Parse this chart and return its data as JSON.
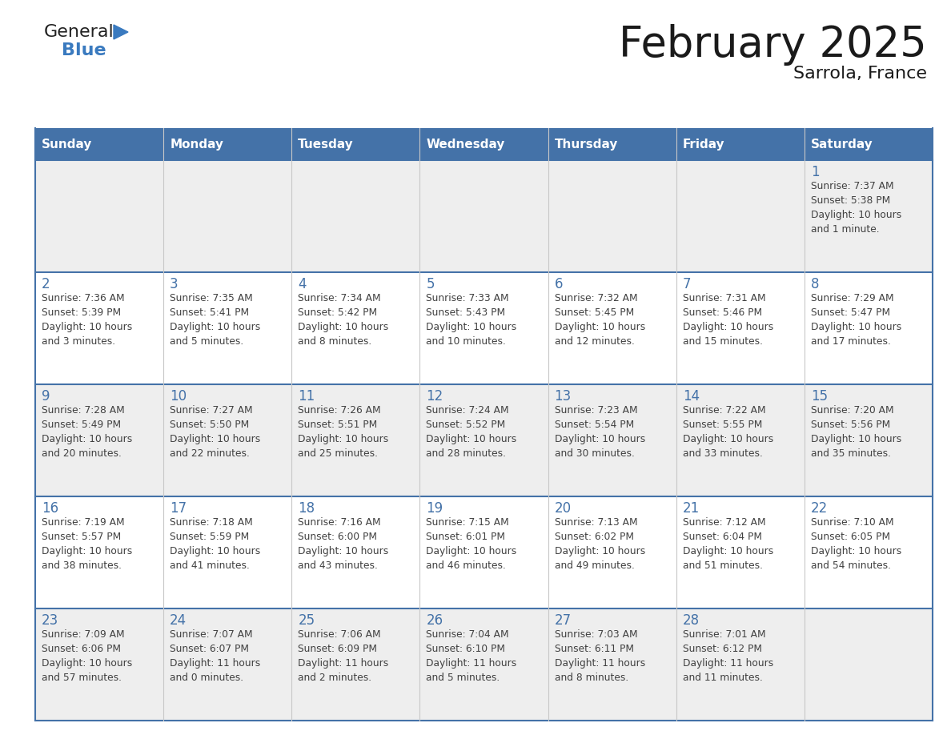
{
  "title": "February 2025",
  "subtitle": "Sarrola, France",
  "days_of_week": [
    "Sunday",
    "Monday",
    "Tuesday",
    "Wednesday",
    "Thursday",
    "Friday",
    "Saturday"
  ],
  "header_bg": "#4472a8",
  "header_text": "#ffffff",
  "row_bg_odd": "#eeeeee",
  "row_bg_even": "#ffffff",
  "grid_line_color": "#4472a8",
  "day_num_color": "#4472a8",
  "text_color": "#404040",
  "calendar_data": [
    [
      null,
      null,
      null,
      null,
      null,
      null,
      {
        "day": 1,
        "sunrise": "7:37 AM",
        "sunset": "5:38 PM",
        "daylight": "10 hours and 1 minute."
      }
    ],
    [
      {
        "day": 2,
        "sunrise": "7:36 AM",
        "sunset": "5:39 PM",
        "daylight": "10 hours and 3 minutes."
      },
      {
        "day": 3,
        "sunrise": "7:35 AM",
        "sunset": "5:41 PM",
        "daylight": "10 hours and 5 minutes."
      },
      {
        "day": 4,
        "sunrise": "7:34 AM",
        "sunset": "5:42 PM",
        "daylight": "10 hours and 8 minutes."
      },
      {
        "day": 5,
        "sunrise": "7:33 AM",
        "sunset": "5:43 PM",
        "daylight": "10 hours and 10 minutes."
      },
      {
        "day": 6,
        "sunrise": "7:32 AM",
        "sunset": "5:45 PM",
        "daylight": "10 hours and 12 minutes."
      },
      {
        "day": 7,
        "sunrise": "7:31 AM",
        "sunset": "5:46 PM",
        "daylight": "10 hours and 15 minutes."
      },
      {
        "day": 8,
        "sunrise": "7:29 AM",
        "sunset": "5:47 PM",
        "daylight": "10 hours and 17 minutes."
      }
    ],
    [
      {
        "day": 9,
        "sunrise": "7:28 AM",
        "sunset": "5:49 PM",
        "daylight": "10 hours and 20 minutes."
      },
      {
        "day": 10,
        "sunrise": "7:27 AM",
        "sunset": "5:50 PM",
        "daylight": "10 hours and 22 minutes."
      },
      {
        "day": 11,
        "sunrise": "7:26 AM",
        "sunset": "5:51 PM",
        "daylight": "10 hours and 25 minutes."
      },
      {
        "day": 12,
        "sunrise": "7:24 AM",
        "sunset": "5:52 PM",
        "daylight": "10 hours and 28 minutes."
      },
      {
        "day": 13,
        "sunrise": "7:23 AM",
        "sunset": "5:54 PM",
        "daylight": "10 hours and 30 minutes."
      },
      {
        "day": 14,
        "sunrise": "7:22 AM",
        "sunset": "5:55 PM",
        "daylight": "10 hours and 33 minutes."
      },
      {
        "day": 15,
        "sunrise": "7:20 AM",
        "sunset": "5:56 PM",
        "daylight": "10 hours and 35 minutes."
      }
    ],
    [
      {
        "day": 16,
        "sunrise": "7:19 AM",
        "sunset": "5:57 PM",
        "daylight": "10 hours and 38 minutes."
      },
      {
        "day": 17,
        "sunrise": "7:18 AM",
        "sunset": "5:59 PM",
        "daylight": "10 hours and 41 minutes."
      },
      {
        "day": 18,
        "sunrise": "7:16 AM",
        "sunset": "6:00 PM",
        "daylight": "10 hours and 43 minutes."
      },
      {
        "day": 19,
        "sunrise": "7:15 AM",
        "sunset": "6:01 PM",
        "daylight": "10 hours and 46 minutes."
      },
      {
        "day": 20,
        "sunrise": "7:13 AM",
        "sunset": "6:02 PM",
        "daylight": "10 hours and 49 minutes."
      },
      {
        "day": 21,
        "sunrise": "7:12 AM",
        "sunset": "6:04 PM",
        "daylight": "10 hours and 51 minutes."
      },
      {
        "day": 22,
        "sunrise": "7:10 AM",
        "sunset": "6:05 PM",
        "daylight": "10 hours and 54 minutes."
      }
    ],
    [
      {
        "day": 23,
        "sunrise": "7:09 AM",
        "sunset": "6:06 PM",
        "daylight": "10 hours and 57 minutes."
      },
      {
        "day": 24,
        "sunrise": "7:07 AM",
        "sunset": "6:07 PM",
        "daylight": "11 hours and 0 minutes."
      },
      {
        "day": 25,
        "sunrise": "7:06 AM",
        "sunset": "6:09 PM",
        "daylight": "11 hours and 2 minutes."
      },
      {
        "day": 26,
        "sunrise": "7:04 AM",
        "sunset": "6:10 PM",
        "daylight": "11 hours and 5 minutes."
      },
      {
        "day": 27,
        "sunrise": "7:03 AM",
        "sunset": "6:11 PM",
        "daylight": "11 hours and 8 minutes."
      },
      {
        "day": 28,
        "sunrise": "7:01 AM",
        "sunset": "6:12 PM",
        "daylight": "11 hours and 11 minutes."
      },
      null
    ]
  ]
}
